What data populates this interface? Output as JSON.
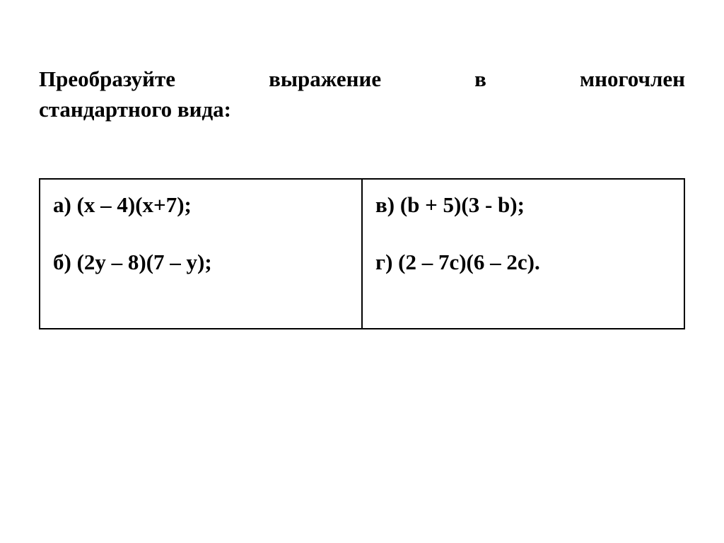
{
  "title": {
    "line1": "Преобразуйте выражение в многочлен",
    "line2": "стандартного вида:"
  },
  "table": {
    "left": {
      "a": "а) (x – 4)(x+7);",
      "b": "б) (2y – 8)(7 – y);"
    },
    "right": {
      "v": "в) (b + 5)(3 - b);",
      "g": "г) (2 – 7c)(6 – 2c)."
    }
  },
  "styling": {
    "background_color": "#ffffff",
    "text_color": "#000000",
    "border_color": "#000000",
    "font_family": "Times New Roman",
    "title_fontsize": 31,
    "cell_fontsize": 31,
    "font_weight": "bold",
    "border_width": 2
  }
}
